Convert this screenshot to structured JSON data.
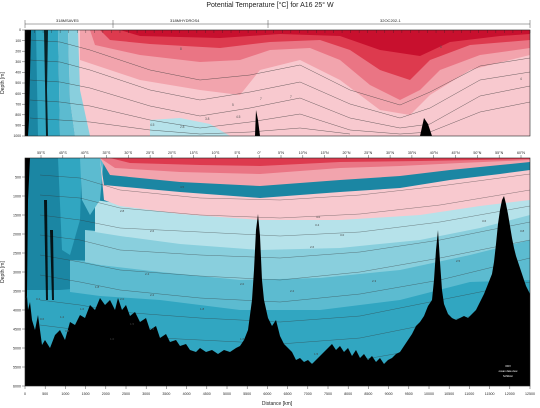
{
  "title": "Potential Temperature [°C] for A16 25° W",
  "colors": {
    "warm1": "#c8102e",
    "warm2": "#dd3a4e",
    "warm3": "#ea7584",
    "warm4": "#f2a4ad",
    "warm5": "#f8c9cf",
    "cool1": "#b6e2ea",
    "cool2": "#89cfdd",
    "cool3": "#5cbbd0",
    "cool4": "#31a6c1",
    "cool5": "#1b86a3",
    "bottom": "#000000",
    "contour": "#333333"
  },
  "chart_data": [
    {
      "type": "heatmap",
      "panel": "upper",
      "cruises": [
        "318MSAVE5",
        "318MHYDROS4",
        "32OC202-1"
      ],
      "ylabel": "Depth [m]",
      "ylim": [
        0,
        1000
      ],
      "y_ticks": [
        0,
        100,
        200,
        300,
        400,
        500,
        600,
        700,
        800,
        900,
        1000
      ],
      "contour_labels": [
        "4.5",
        "2.8",
        "3.8",
        "7",
        "4.5",
        "5",
        "7",
        "8",
        "8",
        "4"
      ]
    },
    {
      "type": "heatmap",
      "panel": "lower",
      "xlabel": "Distance [km]",
      "ylabel": "Depth [m]",
      "xlim": [
        0,
        12500
      ],
      "ylim": [
        0,
        6000
      ],
      "x_ticks": [
        "0",
        "500",
        "1000",
        "1500",
        "2000",
        "2500",
        "3000",
        "3500",
        "4000",
        "4500",
        "5000",
        "5500",
        "6000",
        "6500",
        "7000",
        "7500",
        "8000",
        "8500",
        "9000",
        "9500",
        "10000",
        "10500",
        "11000",
        "11500",
        "12000",
        "12500"
      ],
      "y_ticks": [
        "500",
        "1000",
        "1500",
        "2000",
        "2500",
        "3000",
        "3500",
        "4000",
        "4500",
        "5000",
        "5500",
        "6000"
      ],
      "lat_ticks": [
        "55°S",
        "45°S",
        "40°S",
        "35°S",
        "30°S",
        "25°S",
        "20°S",
        "15°S",
        "10°S",
        "5°S",
        "0°",
        "5°N",
        "10°N",
        "15°N",
        "20°N",
        "25°N",
        "30°N",
        "35°N",
        "40°N",
        "45°N",
        "50°N",
        "55°N",
        "60°N"
      ],
      "contour_labels": [
        "2.8",
        "2.6",
        "2.4",
        "2.2",
        "2.0",
        "1.8",
        "1.6",
        "1.5",
        "1.4",
        "1.2",
        "1.0",
        "0.8",
        "0.6",
        "0.4",
        "2.2",
        "2.6",
        "3.0",
        "3.4",
        "4.0",
        "4.5",
        "3.8",
        "3.6",
        "2.5",
        "1.5",
        "1.6",
        "1.8",
        "2.0",
        "2.3"
      ],
      "footer_note": [
        "ODV",
        "ocean data view",
        "Schlitzer"
      ]
    }
  ]
}
